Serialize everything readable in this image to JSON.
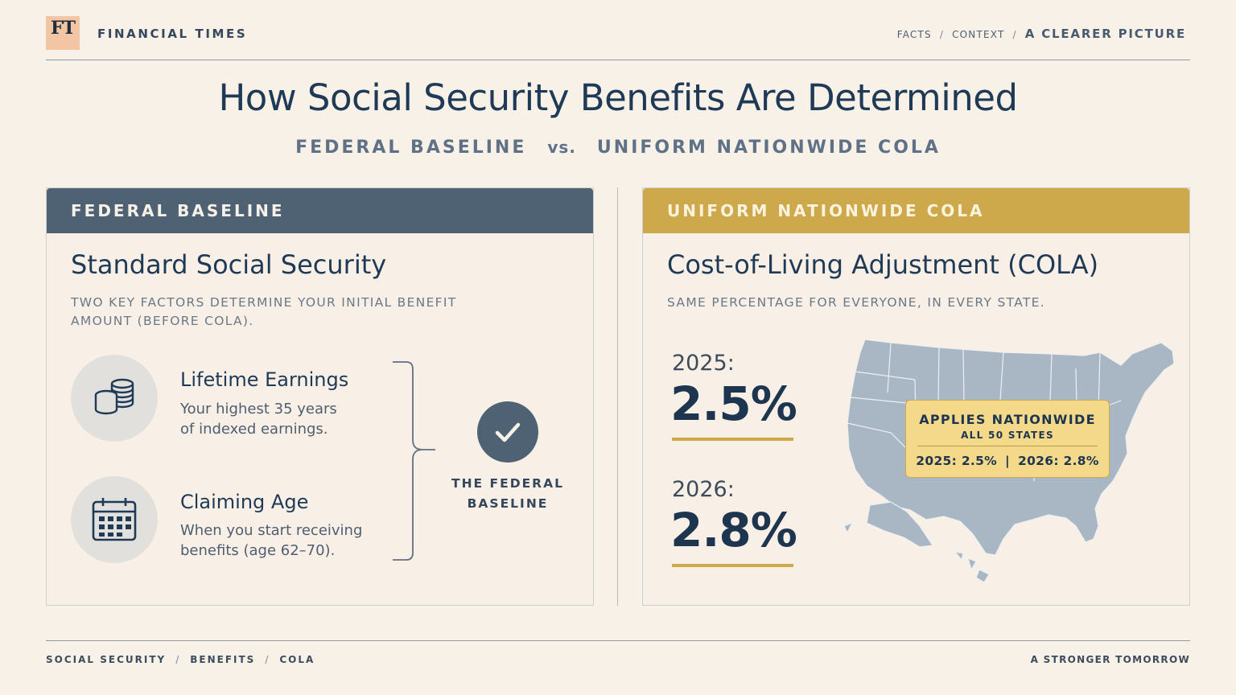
{
  "header": {
    "logo": "FT",
    "brand": "FINANCIAL TIMES",
    "crumbs": [
      "FACTS",
      "CONTEXT",
      "A CLEARER PICTURE"
    ]
  },
  "title": "How Social Security Benefits Are Determined",
  "subtitle": {
    "left": "FEDERAL BASELINE",
    "vs": "vs.",
    "right": "UNIFORM NATIONWIDE COLA"
  },
  "left_panel": {
    "header": "FEDERAL BASELINE",
    "title": "Standard Social Security",
    "subtitle": "TWO KEY FACTORS DETERMINE YOUR INITIAL BENEFIT AMOUNT (BEFORE COLA).",
    "factors": [
      {
        "icon": "coins-stack-icon",
        "title": "Lifetime Earnings",
        "desc_line1": "Your highest 35 years",
        "desc_line2": "of indexed earnings."
      },
      {
        "icon": "calendar-icon",
        "title": "Claiming Age",
        "desc_line1": "When you start receiving",
        "desc_line2": "benefits (age 62–70)."
      }
    ],
    "result_icon": "checkmark-icon",
    "result_label_line1": "THE FEDERAL",
    "result_label_line2": "BASELINE"
  },
  "right_panel": {
    "header": "UNIFORM NATIONWIDE COLA",
    "title": "Cost-of-Living Adjustment (COLA)",
    "subtitle": "SAME PERCENTAGE FOR EVERYONE, IN EVERY STATE.",
    "years": [
      {
        "label": "2025:",
        "value": "2.5%"
      },
      {
        "label": "2026:",
        "value": "2.8%"
      }
    ],
    "map_icon": "us-map-icon",
    "callout": {
      "title": "APPLIES NATIONWIDE",
      "sub": "ALL 50 STATES",
      "val_left": "2025: 2.5%",
      "pipe": "|",
      "val_right": "2026: 2.8%"
    }
  },
  "footer": {
    "crumbs": [
      "SOCIAL SECURITY",
      "BENEFITS",
      "COLA"
    ],
    "tagline": "A STRONGER TOMORROW"
  },
  "colors": {
    "background": "#f8f1e7",
    "navy": "#1e3550",
    "slate": "#4f6274",
    "gold": "#cda94c",
    "callout": "#f5d98a",
    "map": "#a9b6c3"
  }
}
